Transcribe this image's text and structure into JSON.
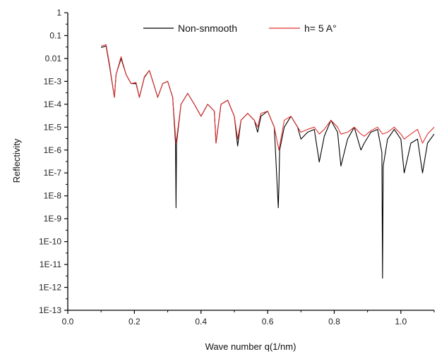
{
  "chart_data": {
    "type": "line",
    "xlabel": "Wave number q(1/nm)",
    "ylabel": "Reflectivity",
    "xlim": [
      0.0,
      1.1
    ],
    "ylim": [
      1e-13,
      1
    ],
    "yscale": "log",
    "grid": false,
    "legend_position": "top",
    "x_ticks": [
      0.0,
      0.2,
      0.4,
      0.6,
      0.8,
      1.0
    ],
    "x_tick_labels": [
      "0.0",
      "0.2",
      "0.4",
      "0.6",
      "0.8",
      "1.0"
    ],
    "y_ticks": [
      1,
      0.1,
      0.01,
      0.001,
      0.0001,
      1e-05,
      1e-06,
      1e-07,
      1e-08,
      1e-09,
      1e-10,
      1e-11,
      1e-12,
      1e-13
    ],
    "y_tick_labels": [
      "1",
      "0.1",
      "0.01",
      "1E-3",
      "1E-4",
      "1E-5",
      "1E-6",
      "1E-7",
      "1E-8",
      "1E-9",
      "1E-10",
      "1E-11",
      "1E-12",
      "1E-13"
    ],
    "series": [
      {
        "name": "Non-snmooth",
        "color": "#000000",
        "x": [
          0.1,
          0.115,
          0.125,
          0.14,
          0.145,
          0.16,
          0.175,
          0.19,
          0.205,
          0.215,
          0.23,
          0.245,
          0.26,
          0.27,
          0.285,
          0.3,
          0.315,
          0.3235,
          0.325,
          0.3265,
          0.34,
          0.36,
          0.38,
          0.4,
          0.42,
          0.44,
          0.445,
          0.46,
          0.48,
          0.5,
          0.51,
          0.52,
          0.54,
          0.56,
          0.57,
          0.58,
          0.6,
          0.62,
          0.632,
          0.634,
          0.636,
          0.65,
          0.67,
          0.69,
          0.7,
          0.72,
          0.74,
          0.755,
          0.77,
          0.79,
          0.81,
          0.82,
          0.84,
          0.86,
          0.88,
          0.89,
          0.91,
          0.93,
          0.943,
          0.945,
          0.947,
          0.96,
          0.98,
          1.0,
          1.01,
          1.03,
          1.05,
          1.065,
          1.08,
          1.1
        ],
        "y": [
          0.03,
          0.035,
          0.005,
          0.0002,
          0.002,
          0.01,
          0.002,
          0.0008,
          0.0008,
          0.0002,
          0.0015,
          0.003,
          0.0006,
          0.0002,
          0.0008,
          0.001,
          0.0002,
          2e-06,
          3e-09,
          2e-06,
          0.0001,
          0.0003,
          0.0001,
          3e-05,
          0.0001,
          5e-05,
          2e-06,
          0.0001,
          0.00015,
          3e-05,
          1.5e-06,
          2e-05,
          4e-05,
          2e-05,
          6e-06,
          3e-05,
          5e-05,
          1e-05,
          3e-09,
          3e-08,
          1e-06,
          1e-05,
          3e-05,
          1e-05,
          3e-06,
          6e-06,
          8e-06,
          3e-07,
          4e-06,
          2e-05,
          6e-06,
          2e-07,
          3e-06,
          1e-05,
          1e-06,
          2e-06,
          6e-06,
          8e-06,
          8e-07,
          2.5e-12,
          2e-07,
          3e-06,
          8e-06,
          3e-06,
          1e-07,
          2e-06,
          3e-06,
          1e-07,
          2e-06,
          5e-06
        ]
      },
      {
        "name": "h= 5 A°",
        "color": "#e03030",
        "x": [
          0.1,
          0.115,
          0.125,
          0.14,
          0.145,
          0.16,
          0.175,
          0.19,
          0.205,
          0.215,
          0.23,
          0.245,
          0.26,
          0.27,
          0.285,
          0.3,
          0.315,
          0.325,
          0.34,
          0.36,
          0.38,
          0.4,
          0.42,
          0.44,
          0.445,
          0.46,
          0.48,
          0.5,
          0.51,
          0.52,
          0.54,
          0.56,
          0.57,
          0.58,
          0.6,
          0.62,
          0.634,
          0.65,
          0.67,
          0.69,
          0.7,
          0.72,
          0.74,
          0.755,
          0.77,
          0.79,
          0.81,
          0.82,
          0.84,
          0.86,
          0.88,
          0.89,
          0.91,
          0.93,
          0.945,
          0.96,
          0.98,
          1.0,
          1.01,
          1.03,
          1.05,
          1.065,
          1.08,
          1.1
        ],
        "y": [
          0.035,
          0.04,
          0.006,
          0.0002,
          0.002,
          0.012,
          0.002,
          0.0008,
          0.0009,
          0.0002,
          0.0016,
          0.003,
          0.0006,
          0.0002,
          0.0008,
          0.001,
          0.0002,
          2e-06,
          0.0001,
          0.0003,
          0.0001,
          3e-05,
          0.0001,
          5e-05,
          2e-06,
          0.0001,
          0.00015,
          3e-05,
          3e-06,
          2e-05,
          4e-05,
          2e-05,
          1e-05,
          4e-05,
          5e-05,
          1e-05,
          1e-06,
          2e-05,
          3e-05,
          1e-05,
          6e-06,
          8e-06,
          1e-05,
          5e-06,
          8e-06,
          2e-05,
          1e-05,
          5e-06,
          6e-06,
          1e-05,
          5e-06,
          4e-06,
          7e-06,
          1e-05,
          5e-06,
          6e-06,
          1e-05,
          5e-06,
          3e-06,
          5e-06,
          8e-06,
          2e-06,
          5e-06,
          1e-05
        ]
      }
    ]
  }
}
